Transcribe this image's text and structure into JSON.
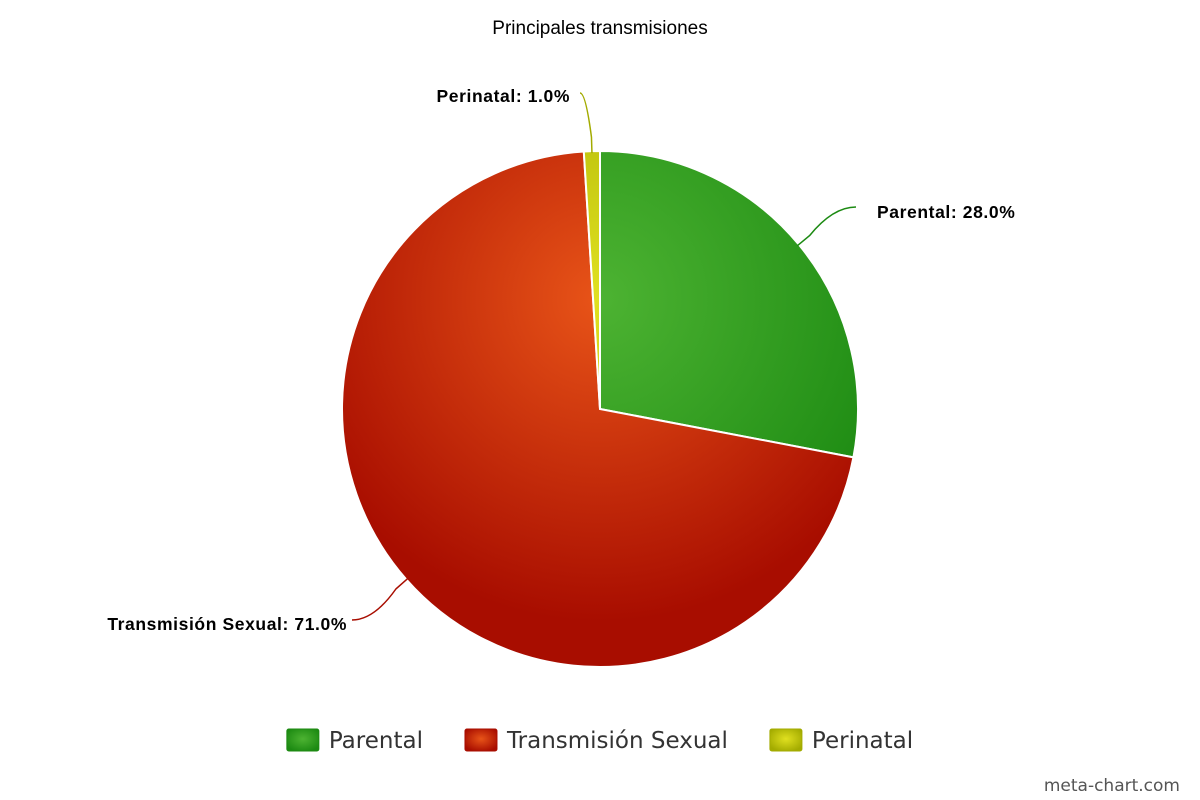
{
  "chart_data": {
    "type": "pie",
    "title": "Principales transmisiones",
    "slices": [
      {
        "name": "Parental",
        "value": 28.0,
        "label": "Parental: 28.0%",
        "color": "#1c8a12",
        "highlight": "#4db332"
      },
      {
        "name": "Transmisión Sexual",
        "value": 71.0,
        "label": "Transmisión Sexual: 71.0%",
        "color": "#a80d00",
        "highlight": "#e85418"
      },
      {
        "name": "Perinatal",
        "value": 1.0,
        "label": "Perinatal: 1.0%",
        "color": "#a3ab00",
        "highlight": "#e0e020"
      }
    ],
    "start_angle_deg": 0,
    "direction": "clockwise",
    "legend_position": "bottom-center"
  },
  "watermark": "meta-chart.com"
}
